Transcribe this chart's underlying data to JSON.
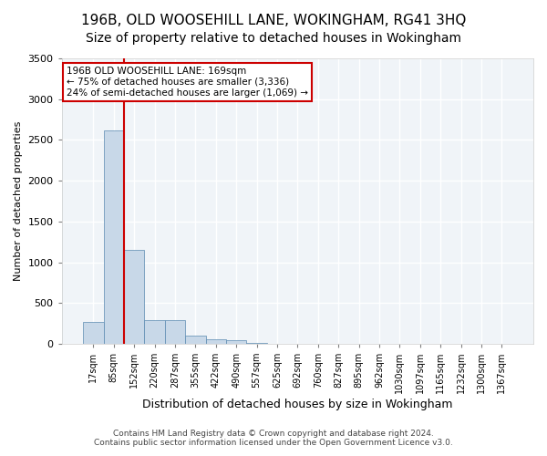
{
  "title_line1": "196B, OLD WOOSEHILL LANE, WOKINGHAM, RG41 3HQ",
  "title_line2": "Size of property relative to detached houses in Wokingham",
  "xlabel": "Distribution of detached houses by size in Wokingham",
  "ylabel": "Number of detached properties",
  "footer_line1": "Contains HM Land Registry data © Crown copyright and database right 2024.",
  "footer_line2": "Contains public sector information licensed under the Open Government Licence v3.0.",
  "bin_labels": [
    "17sqm",
    "85sqm",
    "152sqm",
    "220sqm",
    "287sqm",
    "355sqm",
    "422sqm",
    "490sqm",
    "557sqm",
    "625sqm",
    "692sqm",
    "760sqm",
    "827sqm",
    "895sqm",
    "962sqm",
    "1030sqm",
    "1097sqm",
    "1165sqm",
    "1232sqm",
    "1300sqm",
    "1367sqm"
  ],
  "bar_values": [
    270,
    2620,
    1150,
    285,
    285,
    95,
    55,
    40,
    5,
    3,
    2,
    2,
    1,
    1,
    0,
    0,
    0,
    0,
    0,
    0,
    0
  ],
  "bar_color": "#c8d8e8",
  "bar_edge_color": "#5a8ab0",
  "ylim": [
    0,
    3500
  ],
  "yticks": [
    0,
    500,
    1000,
    1500,
    2000,
    2500,
    3000,
    3500
  ],
  "vline_color": "#cc0000",
  "annotation_text_line1": "196B OLD WOOSEHILL LANE: 169sqm",
  "annotation_text_line2": "← 75% of detached houses are smaller (3,336)",
  "annotation_text_line3": "24% of semi-detached houses are larger (1,069) →",
  "annotation_box_color": "#cc0000",
  "background_color": "#f0f4f8",
  "grid_color": "#ffffff",
  "title_fontsize": 11,
  "subtitle_fontsize": 10,
  "figsize": [
    6.0,
    5.0
  ],
  "dpi": 100
}
